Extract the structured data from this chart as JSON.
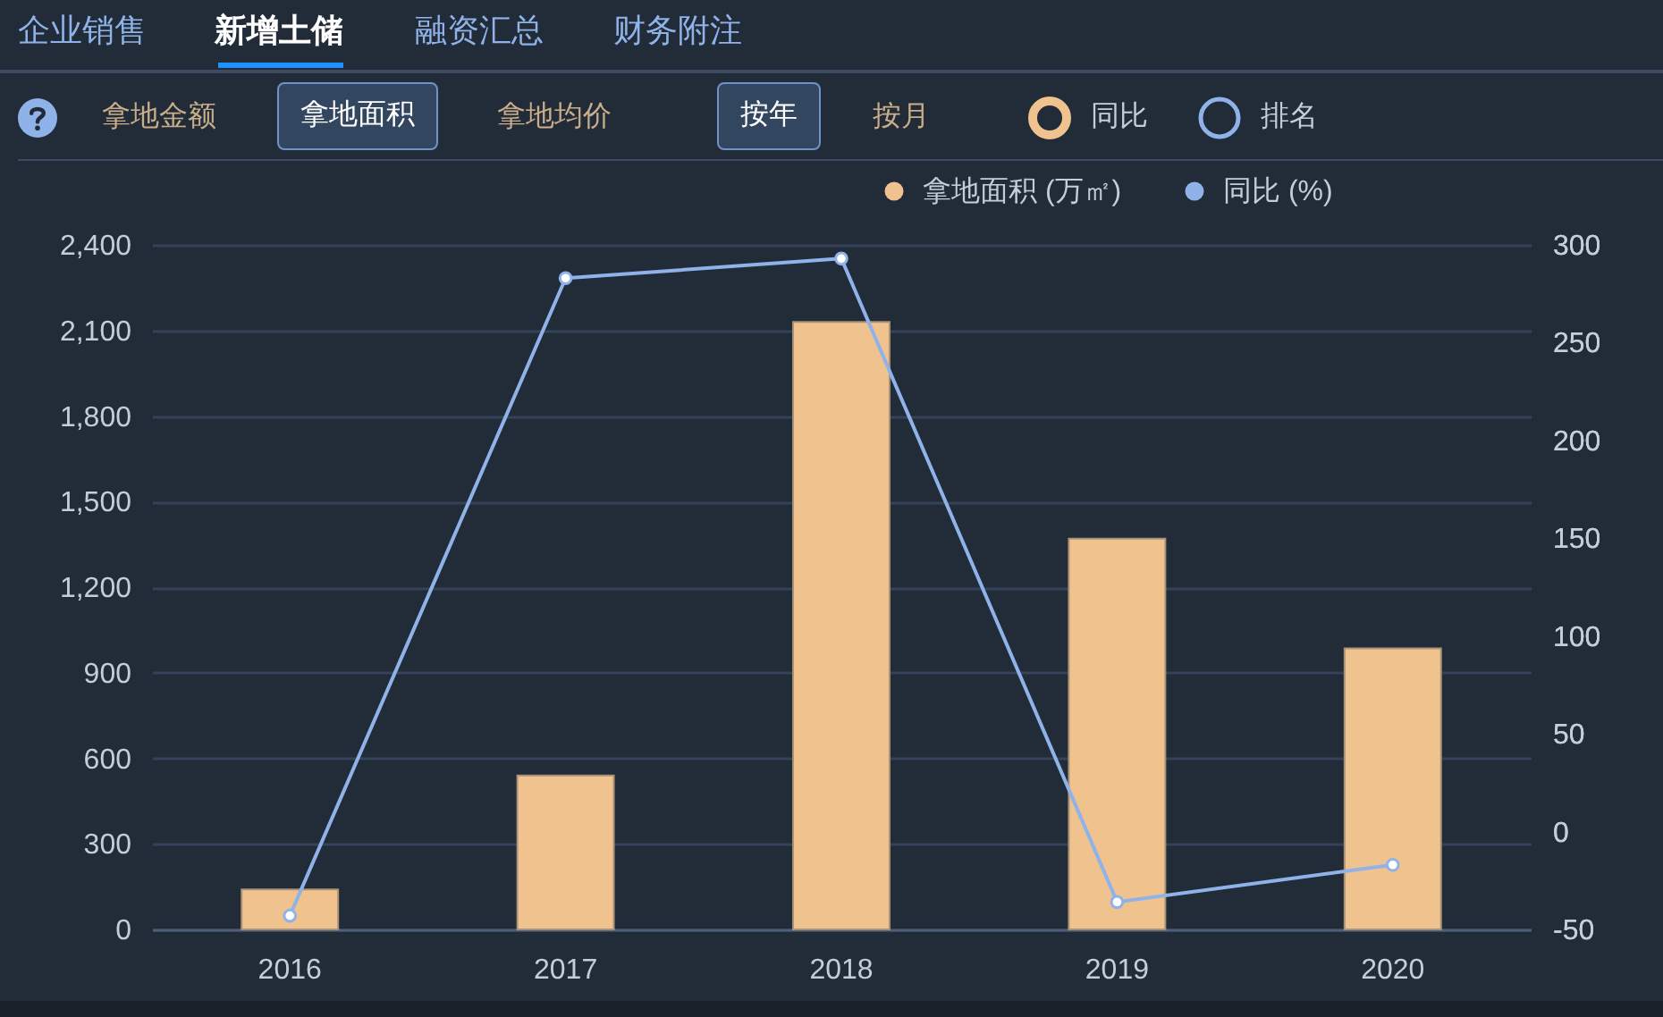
{
  "chart_data": {
    "type": "bar",
    "categories": [
      "2016",
      "2017",
      "2018",
      "2019",
      "2020"
    ],
    "series": [
      {
        "name": "拿地面积 (万㎡)",
        "color": "#f0c28e",
        "values": [
          140,
          540,
          2130,
          1370,
          985
        ]
      },
      {
        "name": "同比 (%)",
        "type": "line",
        "axis": "y2",
        "color": "#8fb3e8",
        "values": [
          -43,
          283,
          293,
          -36,
          -17
        ]
      }
    ],
    "ylim": [
      0,
      2400
    ],
    "yticks": [
      0,
      300,
      600,
      900,
      {
        "value": 1200,
        "label": "1,200"
      },
      {
        "value": 1500,
        "label": "1,500"
      },
      {
        "value": 1800,
        "label": "1,800"
      },
      {
        "value": 2100,
        "label": "2,100"
      },
      {
        "value": 2400,
        "label": "2,400"
      }
    ],
    "y2lim": [
      -50,
      300
    ],
    "y2ticks": [
      -50,
      0,
      50,
      100,
      150,
      200,
      250,
      300
    ],
    "grid": "y",
    "legend": "top right",
    "marker": "circle",
    "annotations": [
      "企业销售",
      "新增土储",
      "融资汇总",
      "财务附注",
      "拿地金额",
      "拿地面积",
      "拿地均价",
      "按年",
      "按月",
      "同比",
      "排名"
    ]
  }
}
